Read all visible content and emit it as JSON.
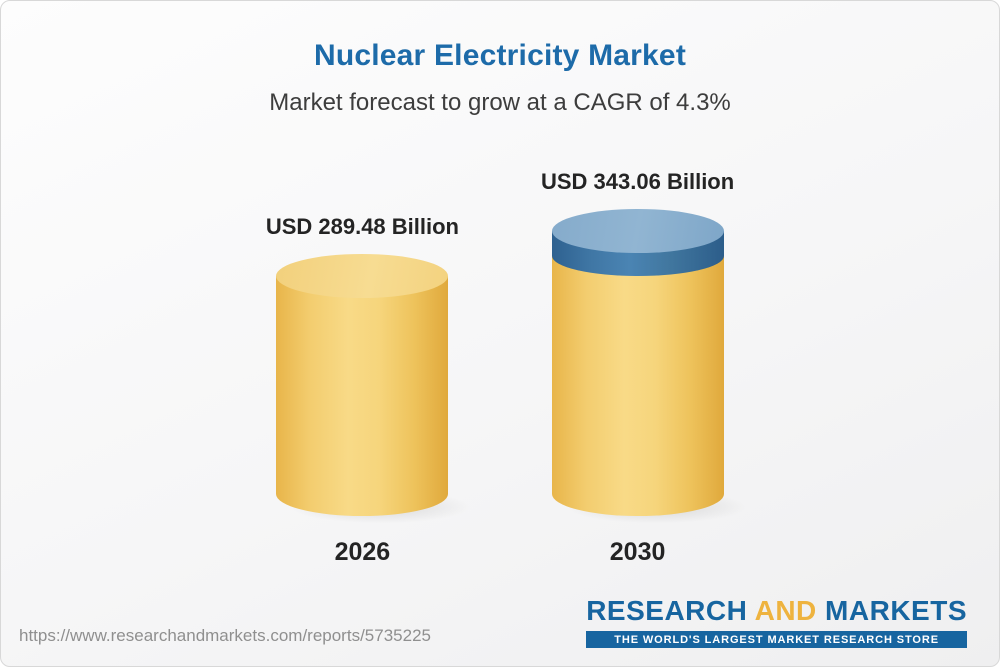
{
  "header": {
    "title": "Nuclear Electricity Market",
    "subtitle": "Market forecast to grow at a CAGR of 4.3%"
  },
  "chart_data": {
    "type": "bar",
    "subtype": "3d-cylinder",
    "title": "Nuclear Electricity Market",
    "subtitle": "Market forecast to grow at a CAGR of 4.3%",
    "cagr_percent": 4.3,
    "unit": "USD Billion",
    "categories": [
      "2026",
      "2030"
    ],
    "values": [
      289.48,
      343.06
    ],
    "value_labels": [
      "USD 289.48 Billion",
      "USD 343.06 Billion"
    ],
    "growth_cap": {
      "bar_index": 1,
      "from_value": 289.48,
      "color": "#4a84b3"
    },
    "bar_color": "#f5cd6f",
    "ylim": [
      0,
      343.06
    ],
    "legend": false,
    "gridlines": false
  },
  "footer": {
    "url": "https://www.researchandmarkets.com/reports/5735225",
    "logo": {
      "research": "RESEARCH",
      "and": "AND",
      "markets": "MARKETS",
      "tagline": "THE WORLD'S LARGEST MARKET RESEARCH STORE"
    }
  },
  "colors": {
    "title_blue": "#1d6ba9",
    "cylinder_yellow": "#f5cd6f",
    "cylinder_blue_cap": "#4a84b3",
    "logo_blue": "#1765a0",
    "logo_gold": "#eeb33f",
    "url_gray": "#8f8f8f",
    "text_dark": "#242424"
  }
}
